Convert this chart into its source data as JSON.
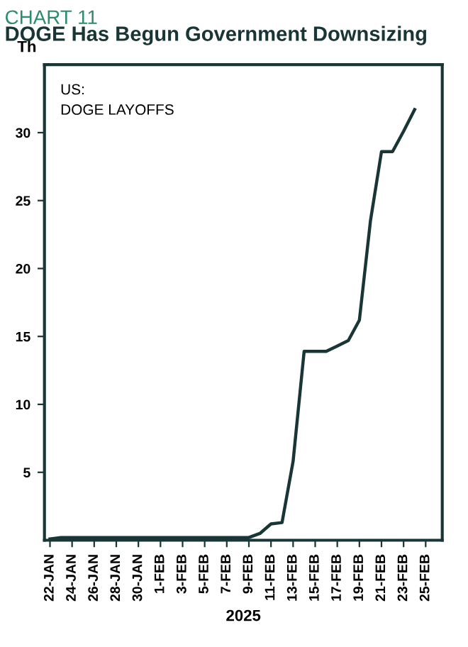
{
  "chart_data": {
    "type": "line",
    "subtitle": "CHART 11",
    "title": "DOGE Has Begun Government Downsizing",
    "ylabel": "Th",
    "xlabel": "2025",
    "annotations": [
      "US:\nDOGE LAYOFFS"
    ],
    "x": [
      "2025-01-22",
      "2025-01-23",
      "2025-01-26",
      "2025-01-30",
      "2025-02-03",
      "2025-02-07",
      "2025-02-09",
      "2025-02-10",
      "2025-02-11",
      "2025-02-12",
      "2025-02-13",
      "2025-02-14",
      "2025-02-15",
      "2025-02-16",
      "2025-02-17",
      "2025-02-18",
      "2025-02-19",
      "2025-02-20",
      "2025-02-21",
      "2025-02-22",
      "2025-02-23",
      "2025-02-24"
    ],
    "series": [
      {
        "color": "#1a3535",
        "values": [
          0.1,
          0.2,
          0.2,
          0.2,
          0.2,
          0.2,
          0.2,
          0.5,
          1.2,
          1.3,
          5.8,
          13.9,
          13.9,
          13.9,
          14.3,
          14.7,
          16.2,
          23.5,
          28.6,
          28.6,
          30.1,
          31.7
        ]
      }
    ],
    "xlim": [
      "2025-01-21T12:00",
      "2025-02-26T12:00"
    ],
    "ylim": [
      0,
      35
    ],
    "yticks": [
      5,
      10,
      15,
      20,
      25,
      30
    ],
    "xticks": [
      {
        "value": "2025-01-22",
        "label": "22-JAN"
      },
      {
        "value": "2025-01-24",
        "label": "24-JAN"
      },
      {
        "value": "2025-01-26",
        "label": "26-JAN"
      },
      {
        "value": "2025-01-28",
        "label": "28-JAN"
      },
      {
        "value": "2025-01-30",
        "label": "30-JAN"
      },
      {
        "value": "2025-02-01",
        "label": "1-FEB"
      },
      {
        "value": "2025-02-03",
        "label": "3-FEB"
      },
      {
        "value": "2025-02-05",
        "label": "5-FEB"
      },
      {
        "value": "2025-02-07",
        "label": "7-FEB"
      },
      {
        "value": "2025-02-09",
        "label": "9-FEB"
      },
      {
        "value": "2025-02-11",
        "label": "11-FEB"
      },
      {
        "value": "2025-02-13",
        "label": "13-FEB"
      },
      {
        "value": "2025-02-15",
        "label": "15-FEB"
      },
      {
        "value": "2025-02-17",
        "label": "17-FEB"
      },
      {
        "value": "2025-02-19",
        "label": "19-FEB"
      },
      {
        "value": "2025-02-21",
        "label": "21-FEB"
      },
      {
        "value": "2025-02-23",
        "label": "23-FEB"
      },
      {
        "value": "2025-02-25",
        "label": "25-FEB"
      }
    ],
    "grid": false,
    "legend": false,
    "marker": "none",
    "line_style": "solid"
  }
}
